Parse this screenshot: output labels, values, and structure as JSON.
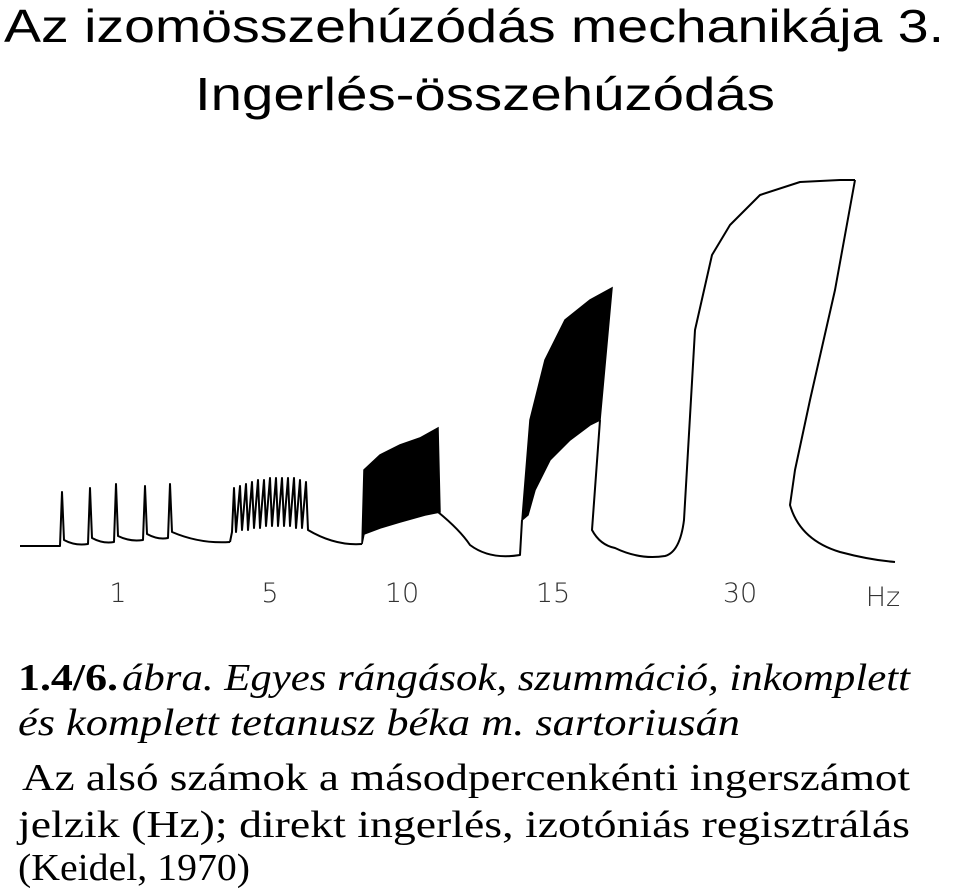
{
  "header": {
    "title_lines": [
      "Az izomösszehúzódás mechanikája 3.",
      "Ingerlés-összehúzódás"
    ]
  },
  "figure": {
    "labels": [
      "1",
      "5",
      "10",
      "15",
      "30",
      "Hz"
    ]
  },
  "caption": {
    "figure_number": "1.4/6.",
    "lines": [
      "ábra. Egyes rángások, szummáció, inkomplett",
      "és komplett tetanusz béka m. sartoriusán"
    ]
  },
  "note": {
    "lines": [
      "Az alsó számok a másodpercenkénti ingerszámot",
      "jelzik (Hz); direkt ingerlés, izotóniás regisztrálás",
      "(Keidel, 1970)"
    ]
  }
}
